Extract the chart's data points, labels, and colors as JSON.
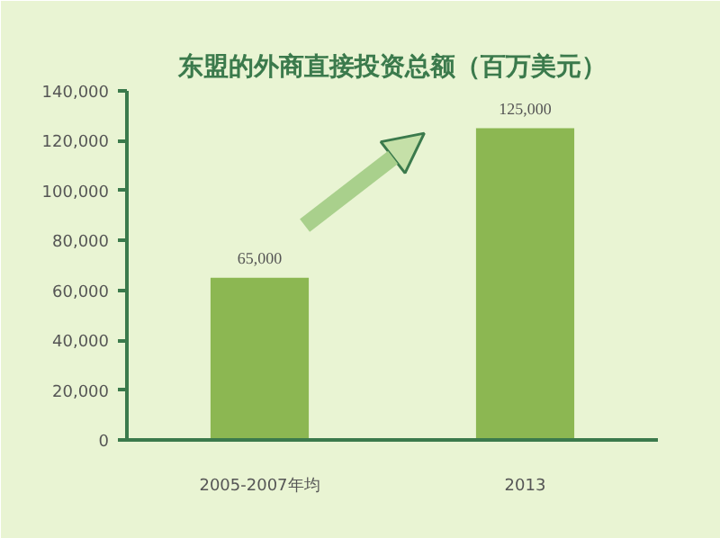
{
  "chart_data": {
    "type": "bar",
    "title": "东盟的外商直接投资总额（百万美元）",
    "categories": [
      "2005-2007年均",
      "2013"
    ],
    "values": [
      65000,
      125000
    ],
    "color": "#8cb752",
    "value_labels": [
      "65,000",
      "125,000"
    ],
    "ylim": [
      0,
      140000
    ],
    "yticks": [
      0,
      {
        "value": 20000,
        "label": "20,000"
      },
      {
        "value": 40000,
        "label": "40,000"
      },
      {
        "value": 60000,
        "label": "60,000"
      },
      {
        "value": 80000,
        "label": "80,000"
      },
      {
        "value": 100000,
        "label": "100,000"
      },
      {
        "value": 120000,
        "label": "120,000"
      },
      {
        "value": 140000,
        "label": "140,000"
      }
    ],
    "grid": false
  }
}
